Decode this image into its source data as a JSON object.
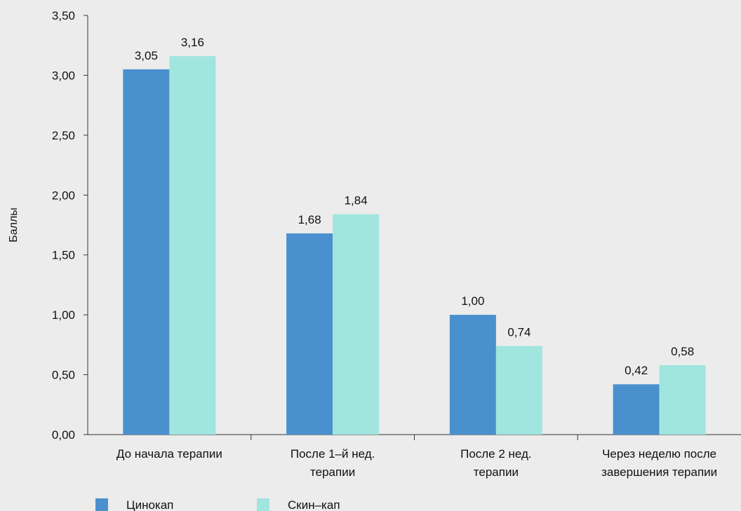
{
  "chart_data": {
    "type": "bar",
    "ylabel": "Баллы",
    "ylim": [
      0,
      3.5
    ],
    "yticks": [
      "0,00",
      "0,50",
      "1,00",
      "1,50",
      "2,00",
      "2,50",
      "3,00",
      "3,50"
    ],
    "categories": [
      [
        "До начала терапии"
      ],
      [
        "После 1–й нед.",
        "терапии"
      ],
      [
        "После 2 нед.",
        "терапии"
      ],
      [
        "Через неделю после",
        "завершения терапии"
      ]
    ],
    "series": [
      {
        "name": "Цинокап",
        "color": "#4a90ce",
        "values": [
          3.05,
          1.68,
          1.0,
          0.42
        ],
        "labels": [
          "3,05",
          "1,68",
          "1,00",
          "0,42"
        ]
      },
      {
        "name": "Скин–кап",
        "color": "#a1e5df",
        "values": [
          3.16,
          1.84,
          0.74,
          0.58
        ],
        "labels": [
          "3,16",
          "1,84",
          "0,74",
          "0,58"
        ]
      }
    ],
    "legend_position": "bottom-left",
    "grid": false
  }
}
